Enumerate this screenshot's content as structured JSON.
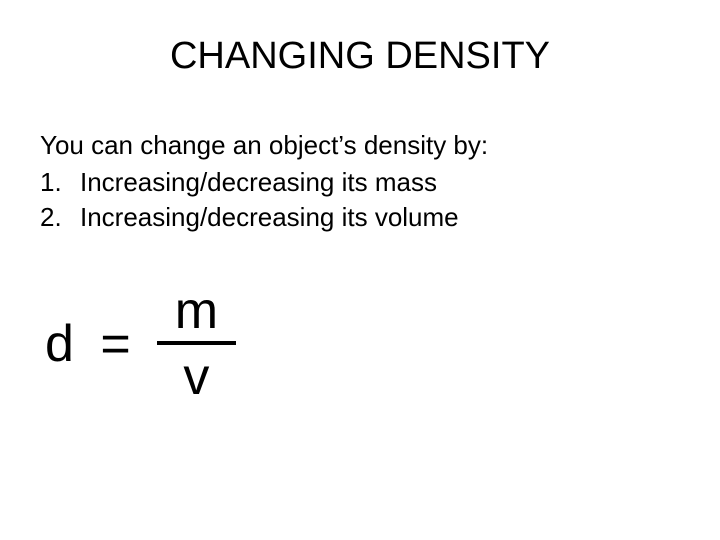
{
  "title": "CHANGING DENSITY",
  "intro": "You can change an object’s density by:",
  "items": [
    {
      "num": "1.",
      "text": "Increasing/decreasing its mass"
    },
    {
      "num": "2.",
      "text": "Increasing/decreasing its volume"
    }
  ],
  "formula": {
    "lhs": "d =",
    "numerator": "m",
    "denominator": "v"
  },
  "style": {
    "background_color": "#ffffff",
    "text_color": "#000000",
    "title_fontsize": 38,
    "body_fontsize": 26,
    "formula_fontsize": 52,
    "fraction_bar_thickness": 4,
    "font_family": "Arial"
  }
}
